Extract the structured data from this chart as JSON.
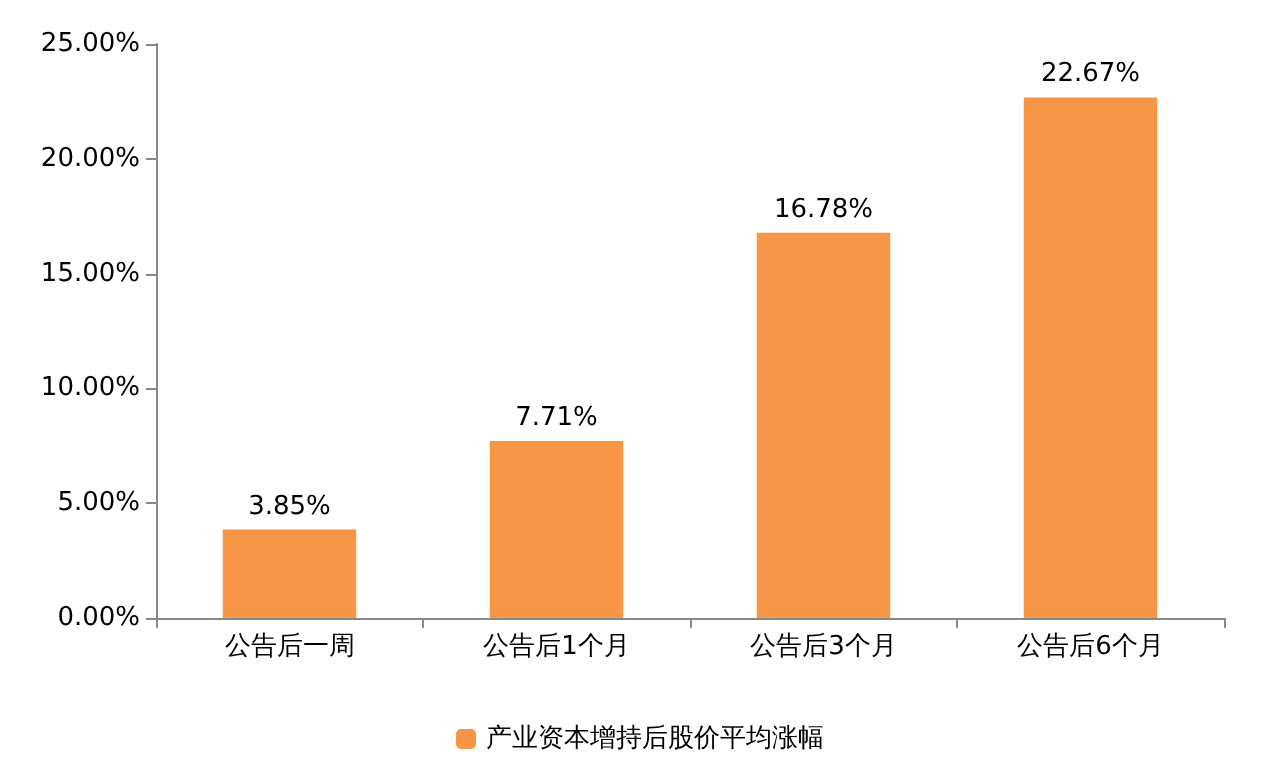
{
  "chart_data": {
    "type": "bar",
    "categories": [
      "公告后一周",
      "公告后1个月",
      "公告后3个月",
      "公告后6个月"
    ],
    "series": [
      {
        "name": "产业资本增持后股价平均涨幅",
        "color": "#f79646",
        "values": [
          3.85,
          7.71,
          16.78,
          22.67
        ],
        "value_labels": [
          "3.85%",
          "7.71%",
          "16.78%",
          "22.67%"
        ]
      }
    ],
    "ylim": [
      0,
      25
    ],
    "yticks": [
      {
        "value": 0,
        "label": "0.00%"
      },
      {
        "value": 5,
        "label": "5.00%"
      },
      {
        "value": 10,
        "label": "10.00%"
      },
      {
        "value": 15,
        "label": "15.00%"
      },
      {
        "value": 20,
        "label": "20.00%"
      },
      {
        "value": 25,
        "label": "25.00%"
      }
    ],
    "grid": false,
    "legend": "bottom"
  }
}
